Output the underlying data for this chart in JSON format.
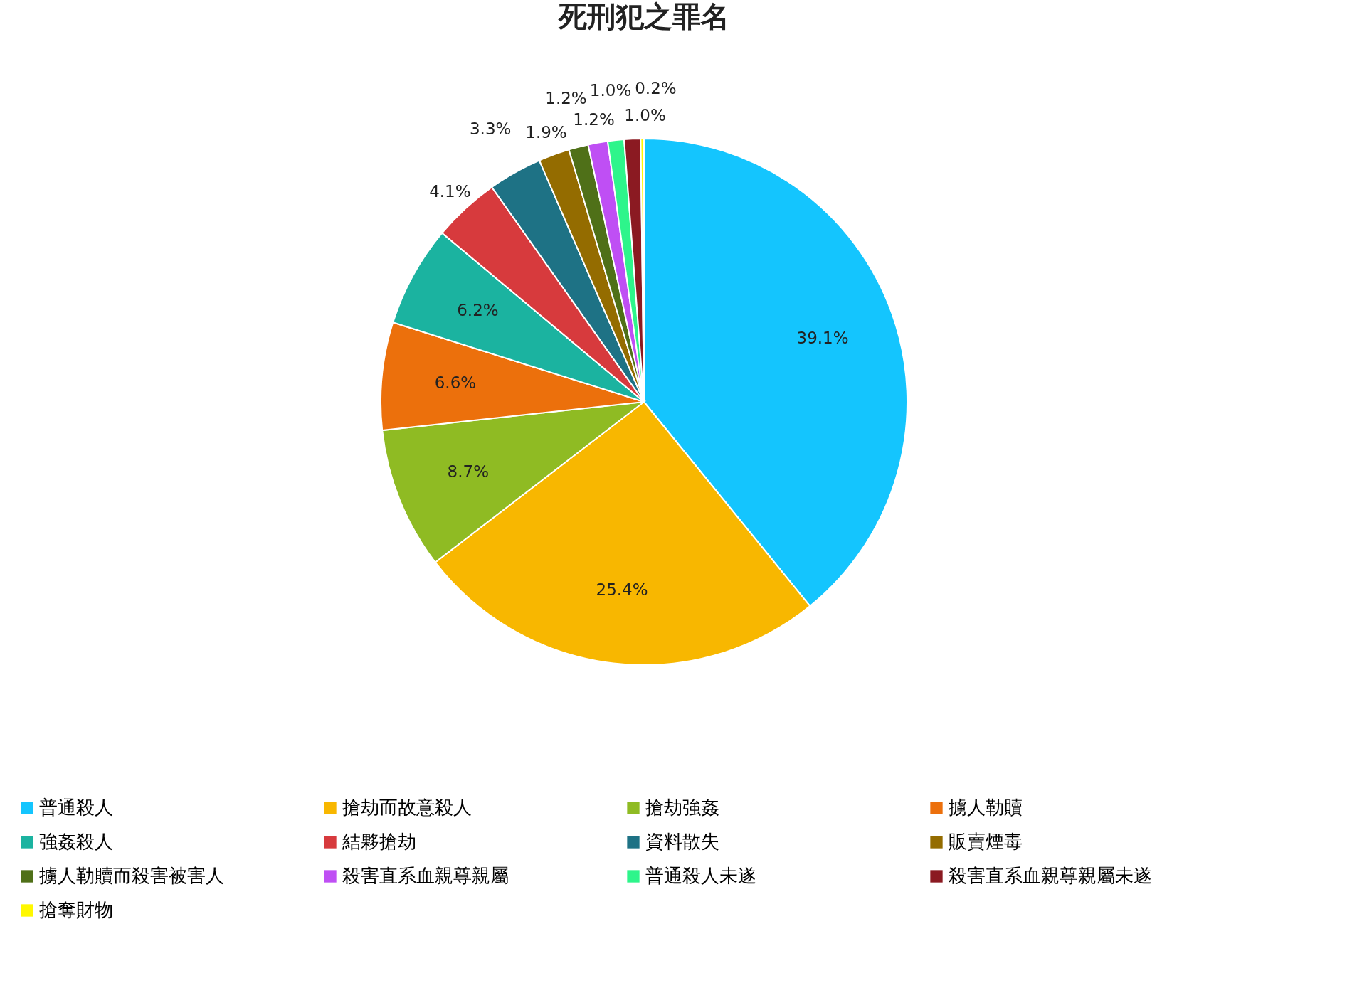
{
  "chart_data": {
    "type": "pie",
    "title": "死刑犯之罪名",
    "categories": [
      "普通殺人",
      "搶劫而故意殺人",
      "搶劫強姦",
      "擄人勒贖",
      "強姦殺人",
      "結夥搶劫",
      "資料散失",
      "販賣煙毒",
      "擄人勒贖而殺害被害人",
      "殺害直系血親尊親屬",
      "普通殺人未遂",
      "殺害直系血親尊親屬未遂",
      "搶奪財物"
    ],
    "values": [
      39.1,
      25.4,
      8.7,
      6.6,
      6.2,
      4.1,
      3.3,
      1.9,
      1.2,
      1.2,
      1.0,
      1.0,
      0.2
    ],
    "value_labels": [
      "39.1%",
      "25.4%",
      "8.7%",
      "6.6%",
      "6.2%",
      "4.1%",
      "3.3%",
      "1.9%",
      "1.2%",
      "1.2%",
      "1.0%",
      "1.0%",
      "0.2%"
    ],
    "colors": [
      "#14c5fe",
      "#f8b700",
      "#8fbb23",
      "#ec700c",
      "#1bb3a0",
      "#d73a3d",
      "#1e7285",
      "#946c00",
      "#4f7018",
      "#bf4ff4",
      "#2ef58b",
      "#8b1a22",
      "#fff800"
    ],
    "legend": "bottom"
  }
}
